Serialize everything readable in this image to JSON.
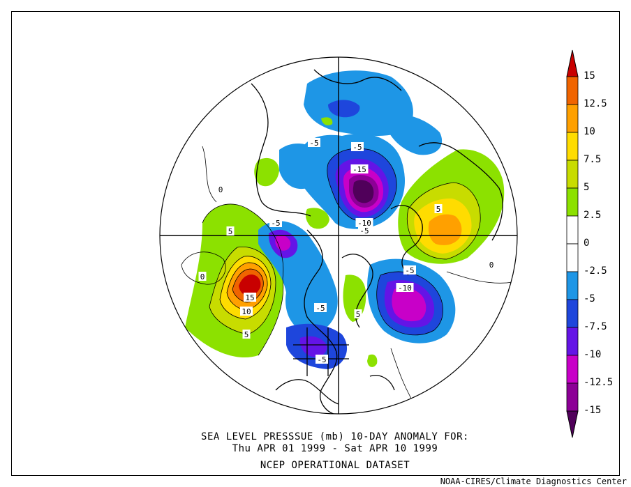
{
  "title_line1": "SEA LEVEL PRESSSUE (mb)   10-DAY ANOMALY FOR:",
  "title_line2": "Thu APR 01 1999 - Sat APR 10 1999",
  "title_line3": "NCEP OPERATIONAL DATASET",
  "credit": "NOAA-CIRES/Climate Diagnostics Center",
  "colorbar": {
    "labels": [
      "15",
      "12.5",
      "10",
      "7.5",
      "5",
      "2.5",
      "0",
      "-2.5",
      "-5",
      "-7.5",
      "-10",
      "-12.5",
      "-15"
    ],
    "colors": [
      "#c80000",
      "#f06400",
      "#ffa000",
      "#ffdc00",
      "#c8dc00",
      "#8ce100",
      "#ffffff",
      "#ffffff",
      "#1e96e6",
      "#1e46dc",
      "#6414e6",
      "#c800c8",
      "#8c0096",
      "#50005a"
    ]
  },
  "contour_labels": [
    "-5",
    "-5",
    "-15",
    "-10",
    "-5",
    "5",
    "-5",
    "0",
    "5",
    "15",
    "10",
    "5",
    "-5",
    "-10",
    "-5",
    "5",
    "-5",
    "0",
    "0"
  ]
}
